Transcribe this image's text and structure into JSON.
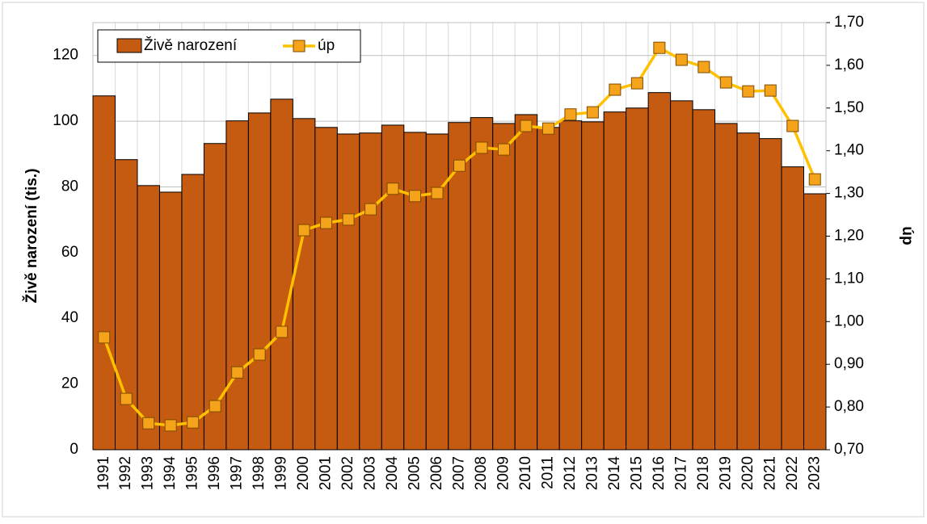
{
  "chart_data": {
    "type": "bar_line",
    "categories": [
      "1991",
      "1992",
      "1993",
      "1994",
      "1995",
      "1996",
      "1997",
      "1998",
      "1999",
      "2000",
      "2001",
      "2002",
      "2003",
      "2004",
      "2005",
      "2006",
      "2007",
      "2008",
      "2009",
      "2010",
      "2011",
      "2012",
      "2013",
      "2014",
      "2015",
      "2016",
      "2017",
      "2018",
      "2019",
      "2020",
      "2021",
      "2022",
      "2023"
    ],
    "series": [
      {
        "name": "Živě narození",
        "type": "bar",
        "color": "#c55a11",
        "values": [
          107.7,
          88.3,
          80.4,
          78.4,
          83.8,
          93.2,
          100.1,
          102.5,
          106.7,
          100.8,
          98.1,
          96.1,
          96.4,
          98.8,
          96.6,
          96.1,
          99.6,
          101.1,
          99.3,
          102.0,
          98.1,
          100.1,
          99.8,
          102.8,
          104.0,
          108.7,
          106.2,
          103.5,
          99.3,
          96.4,
          94.7,
          86.1,
          77.9
        ]
      },
      {
        "name": "úp",
        "type": "line",
        "axis": "y2",
        "color": "#ffc000",
        "marker_color": "#f5a31a",
        "values": [
          0.963,
          0.819,
          0.762,
          0.757,
          0.764,
          0.802,
          0.881,
          0.923,
          0.976,
          1.214,
          1.231,
          1.239,
          1.263,
          1.311,
          1.294,
          1.301,
          1.365,
          1.407,
          1.403,
          1.458,
          1.452,
          1.485,
          1.49,
          1.543,
          1.558,
          1.641,
          1.613,
          1.596,
          1.56,
          1.539,
          1.541,
          1.458,
          1.333
        ]
      }
    ],
    "ylabel": "Živě narození (tis.)",
    "y2label": "úp",
    "ylim": [
      0,
      130
    ],
    "yticks": [
      0,
      20,
      40,
      60,
      80,
      100,
      120
    ],
    "y2lim": [
      0.7,
      1.7
    ],
    "y2ticks": [
      {
        "value": 0.7,
        "label": "0,70"
      },
      {
        "value": 0.8,
        "label": "0,80"
      },
      {
        "value": 0.9,
        "label": "0,90"
      },
      {
        "value": 1.0,
        "label": "1,00"
      },
      {
        "value": 1.1,
        "label": "1,10"
      },
      {
        "value": 1.2,
        "label": "1,20"
      },
      {
        "value": 1.3,
        "label": "1,30"
      },
      {
        "value": 1.4,
        "label": "1,40"
      },
      {
        "value": 1.5,
        "label": "1,50"
      },
      {
        "value": 1.6,
        "label": "1,60"
      },
      {
        "value": 1.7,
        "label": "1,70"
      }
    ],
    "grid": true,
    "legend": "top-left"
  }
}
